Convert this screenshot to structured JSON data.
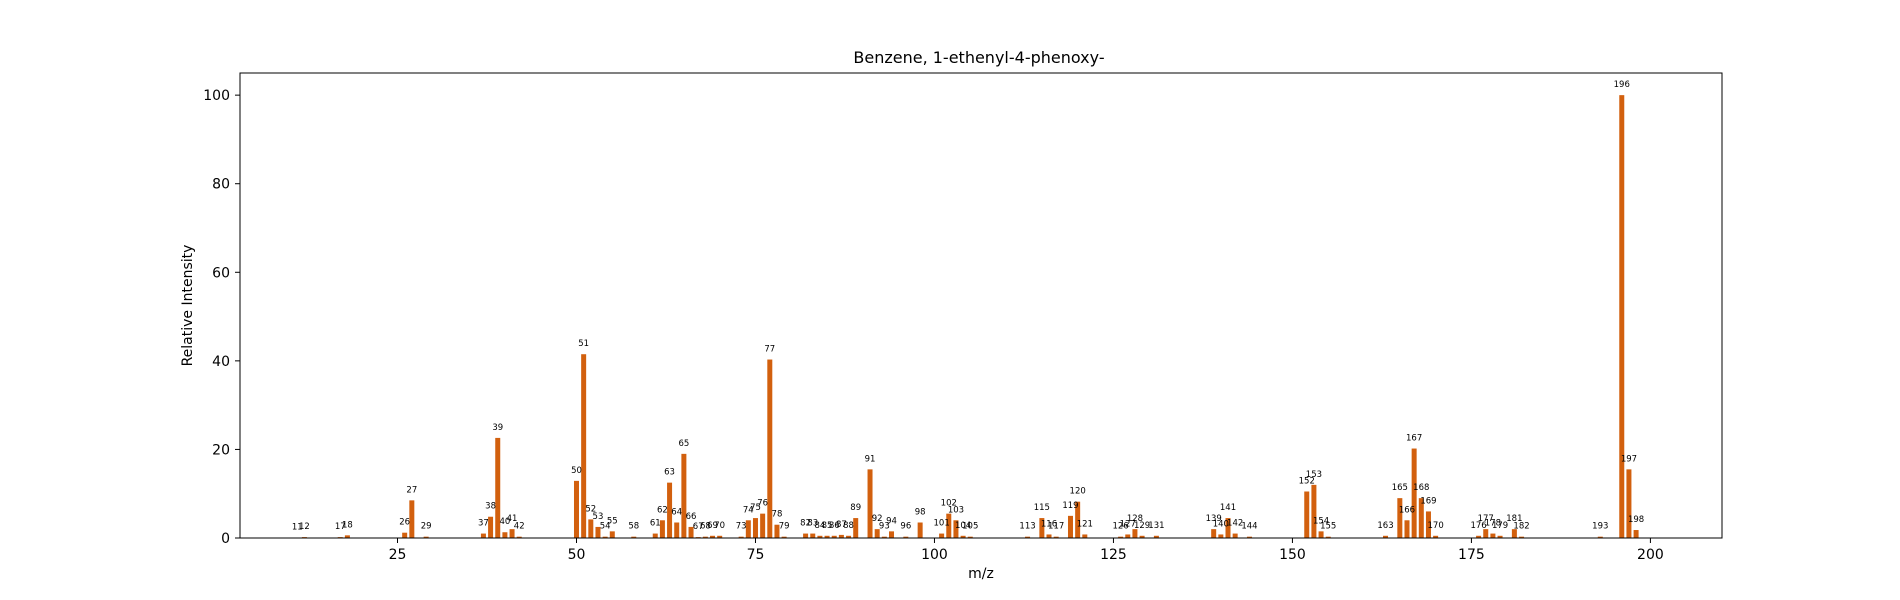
{
  "chart_data": {
    "type": "bar",
    "title": "Benzene, 1-ethenyl-4-phenoxy-",
    "xlabel": "m/z",
    "ylabel": "Relative Intensity",
    "xlim": [
      3,
      210
    ],
    "ylim": [
      0,
      105
    ],
    "xticks": [
      25,
      50,
      75,
      100,
      125,
      150,
      175,
      200
    ],
    "yticks": [
      0,
      20,
      40,
      60,
      80,
      100
    ],
    "bar_color": "#d2600e",
    "grid": false,
    "legend": "none",
    "peaks": [
      {
        "mz": 11,
        "intensity": 0.1,
        "label": "11"
      },
      {
        "mz": 12,
        "intensity": 0.2,
        "label": "12"
      },
      {
        "mz": 17,
        "intensity": 0.2,
        "label": "17"
      },
      {
        "mz": 18,
        "intensity": 0.6,
        "label": "18"
      },
      {
        "mz": 26,
        "intensity": 1.2,
        "label": "26"
      },
      {
        "mz": 27,
        "intensity": 8.5,
        "label": "27"
      },
      {
        "mz": 29,
        "intensity": 0.3,
        "label": "29"
      },
      {
        "mz": 37,
        "intensity": 1.0,
        "label": "37"
      },
      {
        "mz": 38,
        "intensity": 4.8,
        "label": "38"
      },
      {
        "mz": 39,
        "intensity": 22.6,
        "label": "39"
      },
      {
        "mz": 40,
        "intensity": 1.3,
        "label": "40"
      },
      {
        "mz": 41,
        "intensity": 2.0,
        "label": "41"
      },
      {
        "mz": 42,
        "intensity": 0.3,
        "label": "42"
      },
      {
        "mz": 50,
        "intensity": 12.9,
        "label": "50"
      },
      {
        "mz": 51,
        "intensity": 41.5,
        "label": "51"
      },
      {
        "mz": 52,
        "intensity": 4.2,
        "label": "52"
      },
      {
        "mz": 53,
        "intensity": 2.5,
        "label": "53"
      },
      {
        "mz": 54,
        "intensity": 0.3,
        "label": "54"
      },
      {
        "mz": 55,
        "intensity": 1.5,
        "label": "55"
      },
      {
        "mz": 58,
        "intensity": 0.3,
        "label": "58"
      },
      {
        "mz": 61,
        "intensity": 1.0,
        "label": "61"
      },
      {
        "mz": 62,
        "intensity": 4.0,
        "label": "62"
      },
      {
        "mz": 63,
        "intensity": 12.5,
        "label": "63"
      },
      {
        "mz": 64,
        "intensity": 3.5,
        "label": "64"
      },
      {
        "mz": 65,
        "intensity": 19.0,
        "label": "65"
      },
      {
        "mz": 66,
        "intensity": 2.5,
        "label": "66"
      },
      {
        "mz": 67,
        "intensity": 0.2,
        "label": "67"
      },
      {
        "mz": 68,
        "intensity": 0.3,
        "label": "68"
      },
      {
        "mz": 69,
        "intensity": 0.5,
        "label": "69"
      },
      {
        "mz": 70,
        "intensity": 0.5,
        "label": "70"
      },
      {
        "mz": 73,
        "intensity": 0.3,
        "label": "73"
      },
      {
        "mz": 74,
        "intensity": 4.0,
        "label": "74"
      },
      {
        "mz": 75,
        "intensity": 4.5,
        "label": "75"
      },
      {
        "mz": 76,
        "intensity": 5.5,
        "label": "76"
      },
      {
        "mz": 77,
        "intensity": 40.3,
        "label": "77"
      },
      {
        "mz": 78,
        "intensity": 3.0,
        "label": "78"
      },
      {
        "mz": 79,
        "intensity": 0.3,
        "label": "79"
      },
      {
        "mz": 82,
        "intensity": 1.0,
        "label": "82"
      },
      {
        "mz": 83,
        "intensity": 1.0,
        "label": "83"
      },
      {
        "mz": 84,
        "intensity": 0.5,
        "label": "84"
      },
      {
        "mz": 85,
        "intensity": 0.5,
        "label": "85"
      },
      {
        "mz": 86,
        "intensity": 0.5,
        "label": "86"
      },
      {
        "mz": 87,
        "intensity": 0.7,
        "label": "87"
      },
      {
        "mz": 88,
        "intensity": 0.5,
        "label": "88"
      },
      {
        "mz": 89,
        "intensity": 4.5,
        "label": "89"
      },
      {
        "mz": 91,
        "intensity": 15.5,
        "label": "91"
      },
      {
        "mz": 92,
        "intensity": 2.0,
        "label": "92"
      },
      {
        "mz": 93,
        "intensity": 0.3,
        "label": "93"
      },
      {
        "mz": 94,
        "intensity": 1.5,
        "label": "94"
      },
      {
        "mz": 96,
        "intensity": 0.3,
        "label": "96"
      },
      {
        "mz": 98,
        "intensity": 3.5,
        "label": "98"
      },
      {
        "mz": 101,
        "intensity": 1.0,
        "label": "101"
      },
      {
        "mz": 102,
        "intensity": 5.5,
        "label": "102"
      },
      {
        "mz": 103,
        "intensity": 4.0,
        "label": "103"
      },
      {
        "mz": 104,
        "intensity": 0.5,
        "label": "104"
      },
      {
        "mz": 105,
        "intensity": 0.3,
        "label": "105"
      },
      {
        "mz": 113,
        "intensity": 0.3,
        "label": "113"
      },
      {
        "mz": 115,
        "intensity": 4.5,
        "label": "115"
      },
      {
        "mz": 116,
        "intensity": 0.8,
        "label": "116"
      },
      {
        "mz": 117,
        "intensity": 0.3,
        "label": "117"
      },
      {
        "mz": 119,
        "intensity": 5.0,
        "label": "119"
      },
      {
        "mz": 120,
        "intensity": 8.2,
        "label": "120"
      },
      {
        "mz": 121,
        "intensity": 0.8,
        "label": "121"
      },
      {
        "mz": 126,
        "intensity": 0.3,
        "label": "126"
      },
      {
        "mz": 127,
        "intensity": 0.8,
        "label": "127"
      },
      {
        "mz": 128,
        "intensity": 2.0,
        "label": "128"
      },
      {
        "mz": 129,
        "intensity": 0.5,
        "label": "129"
      },
      {
        "mz": 131,
        "intensity": 0.5,
        "label": "131"
      },
      {
        "mz": 139,
        "intensity": 2.0,
        "label": "139"
      },
      {
        "mz": 140,
        "intensity": 0.8,
        "label": "140"
      },
      {
        "mz": 141,
        "intensity": 4.5,
        "label": "141"
      },
      {
        "mz": 142,
        "intensity": 1.0,
        "label": "142"
      },
      {
        "mz": 144,
        "intensity": 0.3,
        "label": "144"
      },
      {
        "mz": 152,
        "intensity": 10.5,
        "label": "152"
      },
      {
        "mz": 153,
        "intensity": 12.0,
        "label": "153"
      },
      {
        "mz": 154,
        "intensity": 1.5,
        "label": "154"
      },
      {
        "mz": 155,
        "intensity": 0.3,
        "label": "155"
      },
      {
        "mz": 163,
        "intensity": 0.5,
        "label": "163"
      },
      {
        "mz": 165,
        "intensity": 9.0,
        "label": "165"
      },
      {
        "mz": 166,
        "intensity": 4.0,
        "label": "166"
      },
      {
        "mz": 167,
        "intensity": 20.2,
        "label": "167"
      },
      {
        "mz": 168,
        "intensity": 9.0,
        "label": "168"
      },
      {
        "mz": 169,
        "intensity": 6.0,
        "label": "169"
      },
      {
        "mz": 170,
        "intensity": 0.5,
        "label": "170"
      },
      {
        "mz": 176,
        "intensity": 0.5,
        "label": "176"
      },
      {
        "mz": 177,
        "intensity": 2.0,
        "label": "177"
      },
      {
        "mz": 178,
        "intensity": 1.0,
        "label": "178"
      },
      {
        "mz": 179,
        "intensity": 0.5,
        "label": "179"
      },
      {
        "mz": 181,
        "intensity": 2.0,
        "label": "181"
      },
      {
        "mz": 182,
        "intensity": 0.3,
        "label": "182"
      },
      {
        "mz": 193,
        "intensity": 0.3,
        "label": "193"
      },
      {
        "mz": 196,
        "intensity": 100.0,
        "label": "196"
      },
      {
        "mz": 197,
        "intensity": 15.5,
        "label": "197"
      },
      {
        "mz": 198,
        "intensity": 1.8,
        "label": "198"
      }
    ]
  }
}
